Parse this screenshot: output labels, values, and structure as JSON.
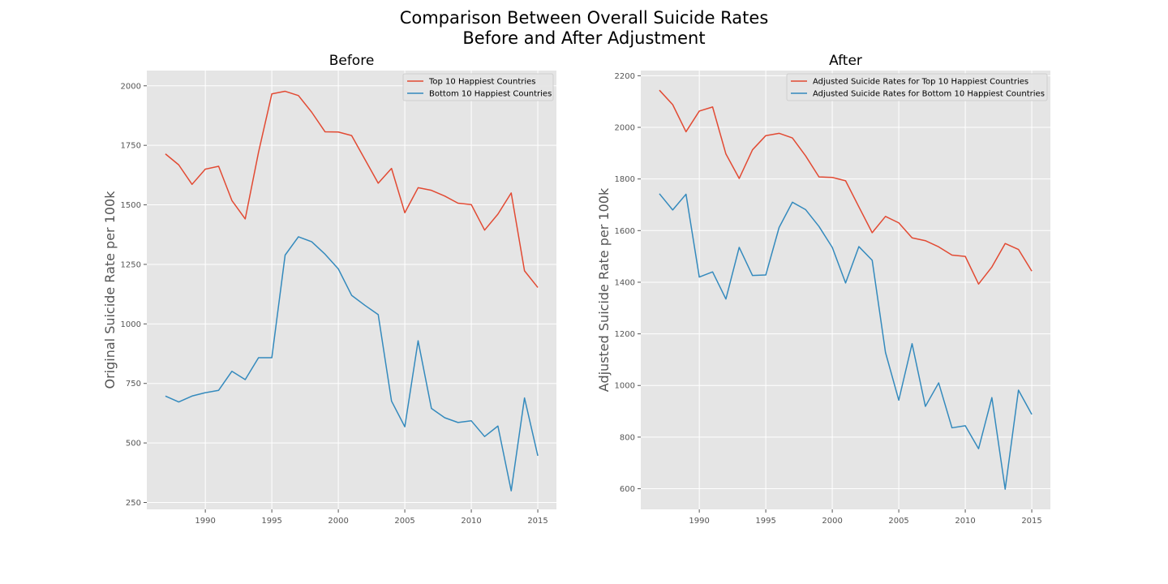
{
  "figure": {
    "title_line1": "Comparison Between Overall Suicide Rates",
    "title_line2": "Before and After Adjustment"
  },
  "colors": {
    "background": "#e5e5e5",
    "grid": "#ffffff",
    "tick_text": "#555555",
    "label_text": "#555555",
    "series_top": "#e24a33",
    "series_bottom": "#348abd"
  },
  "chart_data": [
    {
      "type": "line",
      "title": "Before",
      "xlabel": "",
      "ylabel": "Original Suicide Rate per 100k",
      "xlim": [
        1985.6,
        2016.4
      ],
      "ylim": [
        221,
        2064
      ],
      "xticks": [
        1990,
        1995,
        2000,
        2005,
        2010,
        2015
      ],
      "yticks": [
        250,
        500,
        750,
        1000,
        1250,
        1500,
        1750,
        2000
      ],
      "grid": true,
      "legend_position": "top-right",
      "x": [
        1987,
        1988,
        1989,
        1990,
        1991,
        1992,
        1993,
        1994,
        1995,
        1996,
        1997,
        1998,
        1999,
        2000,
        2001,
        2002,
        2003,
        2004,
        2005,
        2006,
        2007,
        2008,
        2009,
        2010,
        2011,
        2012,
        2013,
        2014,
        2015
      ],
      "series": [
        {
          "name": "Top 10 Happiest Countries",
          "color": "#e24a33",
          "values": [
            1714,
            1668,
            1586,
            1650,
            1662,
            1518,
            1441,
            1721,
            1966,
            1977,
            1959,
            1889,
            1807,
            1806,
            1791,
            1691,
            1591,
            1653,
            1467,
            1572,
            1561,
            1537,
            1507,
            1501,
            1394,
            1461,
            1550,
            1223,
            1153
          ]
        },
        {
          "name": "Bottom 10 Happiest Countries",
          "color": "#348abd",
          "values": [
            697,
            672,
            697,
            711,
            721,
            801,
            766,
            858,
            858,
            1289,
            1366,
            1345,
            1293,
            1231,
            1120,
            1078,
            1039,
            676,
            568,
            929,
            645,
            606,
            586,
            593,
            527,
            571,
            299,
            689,
            446
          ]
        }
      ]
    },
    {
      "type": "line",
      "title": "After",
      "xlabel": "",
      "ylabel": "Adjusted Suicide Rate per 100k",
      "xlim": [
        1985.6,
        2016.4
      ],
      "ylim": [
        520,
        2220
      ],
      "xticks": [
        1990,
        1995,
        2000,
        2005,
        2010,
        2015
      ],
      "yticks": [
        600,
        800,
        1000,
        1200,
        1400,
        1600,
        1800,
        2000,
        2200
      ],
      "grid": true,
      "legend_position": "top-right",
      "x": [
        1987,
        1988,
        1989,
        1990,
        1991,
        1992,
        1993,
        1994,
        1995,
        1996,
        1997,
        1998,
        1999,
        2000,
        2001,
        2002,
        2003,
        2004,
        2005,
        2006,
        2007,
        2008,
        2009,
        2010,
        2011,
        2012,
        2013,
        2014,
        2015
      ],
      "series": [
        {
          "name": "Adjusted Suicide Rates for Top 10 Happiest Countries",
          "color": "#e24a33",
          "values": [
            2144,
            2088,
            1983,
            2063,
            2079,
            1897,
            1802,
            1913,
            1968,
            1977,
            1959,
            1889,
            1808,
            1806,
            1793,
            1692,
            1592,
            1655,
            1630,
            1572,
            1561,
            1537,
            1505,
            1500,
            1393,
            1459,
            1550,
            1527,
            1443
          ]
        },
        {
          "name": "Adjusted Suicide Rates for Bottom 10 Happiest Countries",
          "color": "#348abd",
          "values": [
            1743,
            1680,
            1741,
            1420,
            1440,
            1335,
            1535,
            1426,
            1428,
            1612,
            1710,
            1681,
            1616,
            1535,
            1397,
            1538,
            1485,
            1128,
            943,
            1162,
            919,
            1010,
            836,
            844,
            755,
            953,
            598,
            982,
            888
          ]
        }
      ]
    }
  ]
}
